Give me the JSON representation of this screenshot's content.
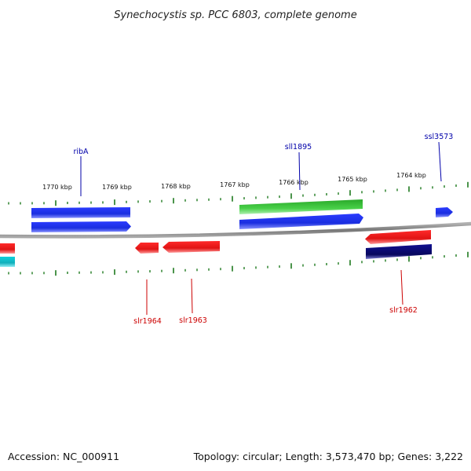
{
  "title": "Synechocystis sp. PCC 6803, complete genome",
  "footer": {
    "accession": "Accession: NC_000911",
    "summary": "Topology: circular; Length: 3,573,470 bp; Genes: 3,222"
  },
  "colors": {
    "backbone": "#8a8a8a",
    "tick": "#1e7a1e",
    "label_forward": "#0000aa",
    "label_reverse": "#cc0000",
    "gene_blue": "#1a2ee0",
    "gene_green": "#3cc63c",
    "gene_red": "#e81818",
    "gene_navy": "#0a0a7a",
    "gene_cyan": "#16c2cc"
  },
  "scale": {
    "labels": [
      "1770 kbp",
      "1769 kbp",
      "1768 kbp",
      "1767 kbp",
      "1766 kbp",
      "1765 kbp",
      "1764 kbp"
    ]
  },
  "gene_labels": {
    "ribA": "ribA",
    "sll1895": "sll1895",
    "ssl3573": "ssl3573",
    "slr1964": "slr1964",
    "slr1963": "slr1963",
    "slr1962": "slr1962"
  }
}
